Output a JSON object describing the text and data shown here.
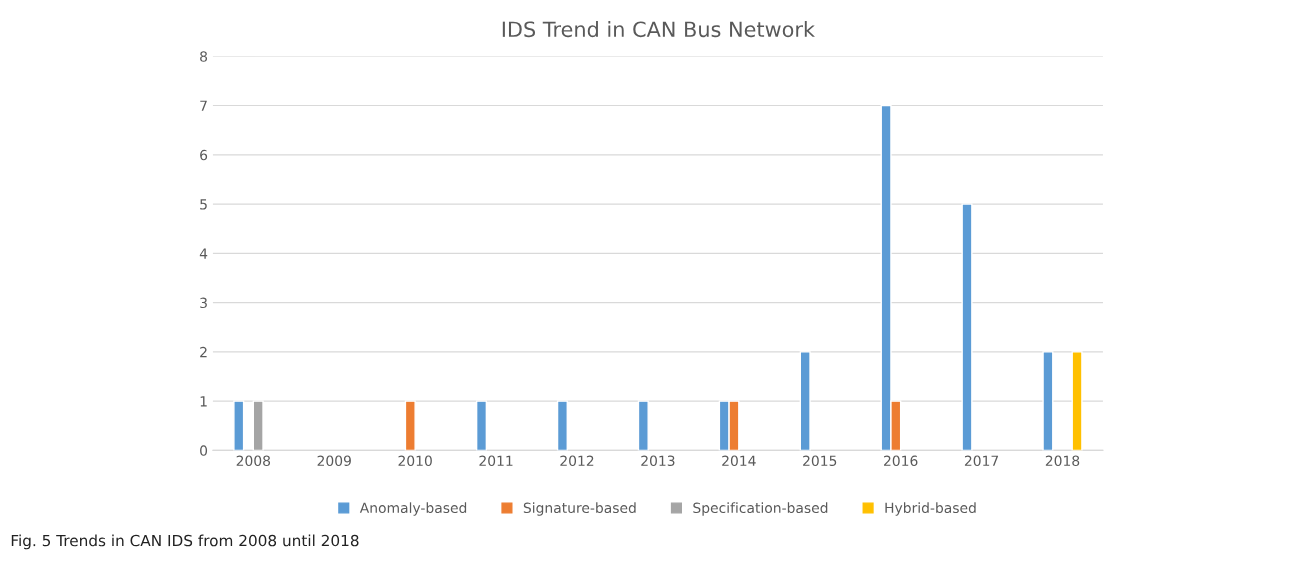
{
  "chart_data": {
    "type": "bar",
    "title": "IDS Trend in CAN Bus Network",
    "categories": [
      "2008",
      "2009",
      "2010",
      "2011",
      "2012",
      "2013",
      "2014",
      "2015",
      "2016",
      "2017",
      "2018"
    ],
    "series": [
      {
        "name": "Anomaly-based",
        "color": "#5b9bd5",
        "values": [
          1,
          null,
          null,
          1,
          1,
          1,
          1,
          2,
          7,
          5,
          2
        ]
      },
      {
        "name": "Signature-based",
        "color": "#ed7d31",
        "values": [
          null,
          null,
          1,
          null,
          null,
          null,
          1,
          null,
          1,
          null,
          null
        ]
      },
      {
        "name": "Specification-based",
        "color": "#a5a5a5",
        "values": [
          1,
          null,
          null,
          null,
          null,
          null,
          null,
          null,
          null,
          null,
          null
        ]
      },
      {
        "name": "Hybrid-based",
        "color": "#ffc000",
        "values": [
          null,
          null,
          null,
          null,
          null,
          null,
          null,
          null,
          null,
          null,
          2
        ]
      }
    ],
    "ylim": [
      0,
      8
    ],
    "yticks": [
      0,
      1,
      2,
      3,
      4,
      5,
      6,
      7,
      8
    ],
    "grid": "y",
    "legend": "bottom",
    "annotations": [
      "Fig. 5 Trends in CAN IDS from 2008 until 2018"
    ]
  }
}
